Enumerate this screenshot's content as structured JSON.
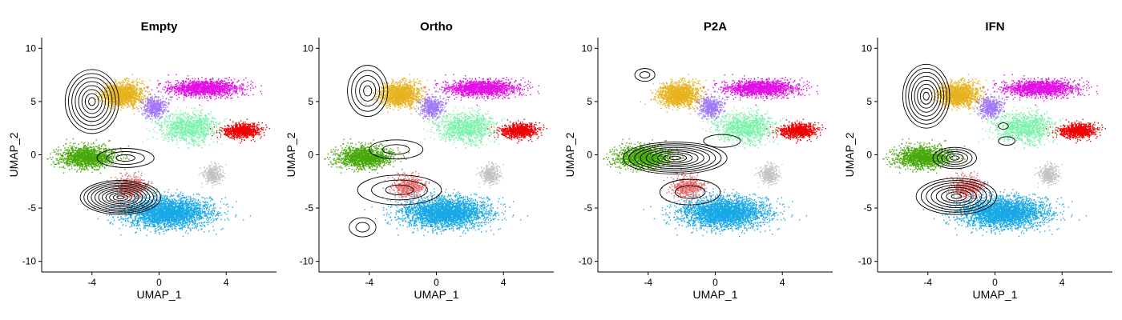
{
  "chart_data": {
    "type": "scatter",
    "xlabel": "UMAP_1",
    "ylabel": "UMAP_2",
    "xlim": [
      -7,
      7
    ],
    "ylim": [
      -11,
      11
    ],
    "xticks": [
      -4,
      0,
      4
    ],
    "yticks": [
      10,
      5,
      0,
      -5,
      -10
    ],
    "grid": false,
    "clusters": [
      {
        "id": "c_yellow",
        "color": "#E7B21E",
        "cx": -2.2,
        "cy": 5.7,
        "sx": 1.1,
        "sy": 1.0,
        "n": 1400
      },
      {
        "id": "c_magenta",
        "color": "#E20FE5",
        "cx": 2.7,
        "cy": 6.3,
        "sx": 1.9,
        "sy": 0.7,
        "n": 1500
      },
      {
        "id": "c_purple",
        "color": "#A078F7",
        "cx": -0.3,
        "cy": 4.5,
        "sx": 0.6,
        "sy": 0.9,
        "n": 500
      },
      {
        "id": "c_lightgreen",
        "color": "#79F3A9",
        "cx": 1.8,
        "cy": 2.6,
        "sx": 1.6,
        "sy": 1.3,
        "n": 1100
      },
      {
        "id": "c_red",
        "color": "#EE0000",
        "cx": 4.9,
        "cy": 2.3,
        "sx": 1.0,
        "sy": 0.6,
        "n": 800
      },
      {
        "id": "c_green",
        "color": "#47A80A",
        "cx": -4.3,
        "cy": -0.2,
        "sx": 1.5,
        "sy": 0.9,
        "n": 1500
      },
      {
        "id": "c_gray",
        "color": "#C3C3C3",
        "cx": 3.2,
        "cy": -1.8,
        "sx": 0.5,
        "sy": 0.8,
        "n": 350
      },
      {
        "id": "c_salmon",
        "color": "#EC6666",
        "cx": -1.7,
        "cy": -3.0,
        "sx": 0.9,
        "sy": 0.9,
        "n": 500
      },
      {
        "id": "c_blue",
        "color": "#18A8E6",
        "cx": 0.5,
        "cy": -5.4,
        "sx": 2.3,
        "sy": 1.3,
        "n": 3000
      }
    ],
    "panels": [
      {
        "title": "Empty",
        "density_peaks": [
          {
            "cx": -2.3,
            "cy": -4.0,
            "rx": 2.4,
            "ry": 1.6,
            "levels": 11
          },
          {
            "cx": -4.0,
            "cy": 5.0,
            "rx": 1.6,
            "ry": 3.0,
            "levels": 8
          },
          {
            "cx": -2.0,
            "cy": -0.3,
            "rx": 1.7,
            "ry": 0.9,
            "levels": 3
          }
        ]
      },
      {
        "title": "Ortho",
        "density_peaks": [
          {
            "cx": -4.1,
            "cy": 6.0,
            "rx": 1.2,
            "ry": 2.4,
            "levels": 5
          },
          {
            "cx": -2.2,
            "cy": -3.3,
            "rx": 2.5,
            "ry": 1.4,
            "levels": 3
          },
          {
            "cx": -2.4,
            "cy": 0.5,
            "rx": 1.6,
            "ry": 0.9,
            "levels": 2
          },
          {
            "cx": -4.4,
            "cy": -6.8,
            "rx": 0.8,
            "ry": 0.9,
            "levels": 2
          }
        ]
      },
      {
        "title": "P2A",
        "density_peaks": [
          {
            "cx": -2.4,
            "cy": -0.3,
            "rx": 3.1,
            "ry": 1.5,
            "levels": 9
          },
          {
            "cx": -4.2,
            "cy": 7.5,
            "rx": 0.6,
            "ry": 0.6,
            "levels": 2
          },
          {
            "cx": -1.5,
            "cy": -3.5,
            "rx": 1.8,
            "ry": 1.2,
            "levels": 2
          },
          {
            "cx": 0.4,
            "cy": 1.3,
            "rx": 1.1,
            "ry": 0.6,
            "levels": 1
          }
        ]
      },
      {
        "title": "IFN",
        "density_peaks": [
          {
            "cx": -4.1,
            "cy": 5.5,
            "rx": 1.4,
            "ry": 3.0,
            "levels": 8
          },
          {
            "cx": -2.3,
            "cy": -3.9,
            "rx": 2.4,
            "ry": 1.7,
            "levels": 8
          },
          {
            "cx": -2.4,
            "cy": -0.3,
            "rx": 1.3,
            "ry": 1.0,
            "levels": 5
          },
          {
            "cx": 0.5,
            "cy": 2.7,
            "rx": 0.3,
            "ry": 0.3,
            "levels": 1
          },
          {
            "cx": 0.7,
            "cy": 1.3,
            "rx": 0.5,
            "ry": 0.4,
            "levels": 1
          }
        ]
      }
    ]
  }
}
